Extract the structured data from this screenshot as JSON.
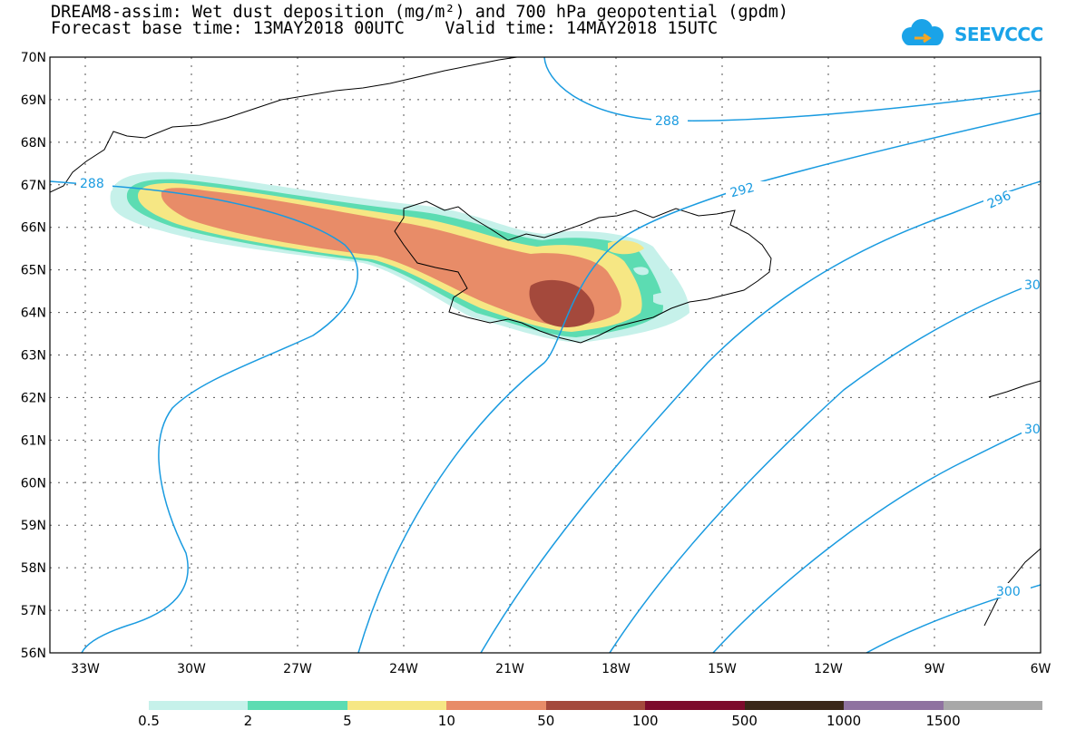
{
  "header": {
    "title_line1": "DREAM8-assim: Wet dust deposition (mg/m²) and 700 hPa geopotential (gpdm)",
    "title_line2": "Forecast base time: 13MAY2018 00UTC    Valid time: 14MAY2018 15UTC",
    "logo_text": "SEEVCCC"
  },
  "map": {
    "lat_labels": [
      "70N",
      "69N",
      "68N",
      "67N",
      "66N",
      "65N",
      "64N",
      "63N",
      "62N",
      "61N",
      "60N",
      "59N",
      "58N",
      "57N",
      "56N"
    ],
    "lon_labels": [
      "33W",
      "30W",
      "27W",
      "24W",
      "21W",
      "18W",
      "15W",
      "12W",
      "9W",
      "6W"
    ],
    "contour_labels": [
      "288",
      "288",
      "292",
      "296",
      "30",
      "30",
      "300"
    ]
  },
  "legend": {
    "labels": [
      "0.5",
      "2",
      "5",
      "10",
      "50",
      "100",
      "500",
      "1000",
      "1500"
    ],
    "colors": [
      "#c6f1ea",
      "#5cdcb2",
      "#f6e784",
      "#e88c68",
      "#a4493c",
      "#7c0b2c",
      "#3a2718",
      "#8f72a0",
      "#a8a8a8"
    ]
  }
}
